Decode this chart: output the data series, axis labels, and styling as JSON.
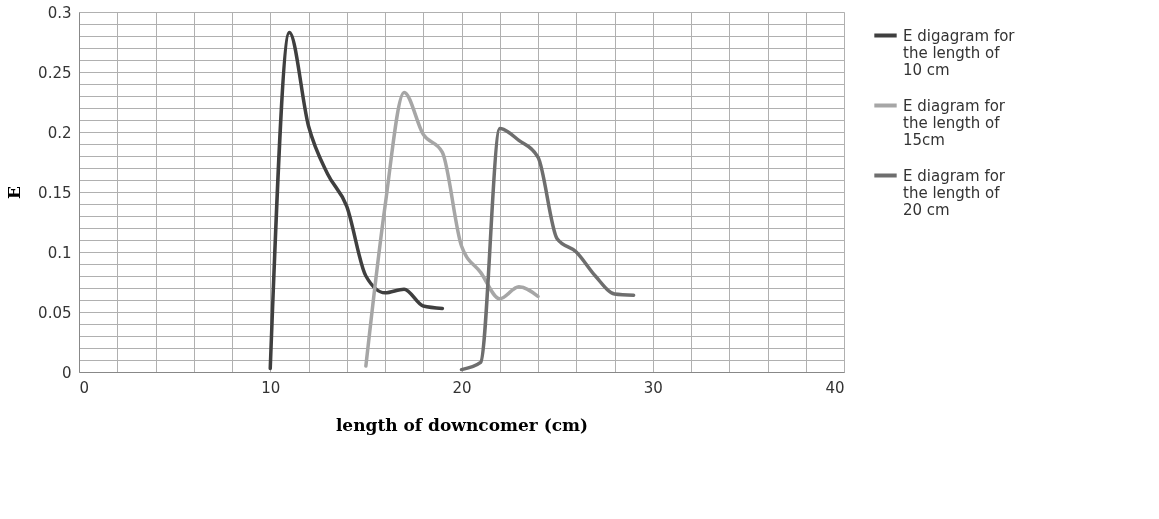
{
  "chart_data": {
    "type": "line",
    "xlabel": "length of downcomer (cm)",
    "ylabel": "E",
    "series": [
      {
        "name": "E digagram for the length of 10 cm",
        "color": "#3f3f3f",
        "x": [
          10,
          11,
          12,
          13,
          14,
          15,
          16,
          17,
          18,
          19
        ],
        "values": [
          0.003,
          0.283,
          0.205,
          0.165,
          0.138,
          0.08,
          0.066,
          0.069,
          0.055,
          0.053
        ]
      },
      {
        "name": "E diagram for the length of 15cm",
        "color": "#a6a6a6",
        "x": [
          15,
          16,
          17,
          18,
          19,
          20,
          21,
          22,
          23,
          24
        ],
        "values": [
          0.005,
          0.138,
          0.233,
          0.198,
          0.183,
          0.105,
          0.083,
          0.061,
          0.071,
          0.063
        ]
      },
      {
        "name": "E diagram for the length of 20 cm",
        "color": "#6e6e6e",
        "x": [
          20,
          21,
          22,
          23,
          24,
          25,
          26,
          27,
          28,
          29
        ],
        "values": [
          0.002,
          0.008,
          0.203,
          0.193,
          0.179,
          0.111,
          0.1,
          0.08,
          0.065,
          0.064
        ]
      }
    ],
    "xlim": [
      0,
      40
    ],
    "xticks": [
      0,
      {
        "value": 2,
        "label": null
      },
      {
        "value": 4,
        "label": null
      },
      {
        "value": 6,
        "label": null
      },
      {
        "value": 8,
        "label": null
      },
      10,
      {
        "value": 12,
        "label": null
      },
      {
        "value": 14,
        "label": null
      },
      {
        "value": 16,
        "label": null
      },
      {
        "value": 18,
        "label": null
      },
      20,
      {
        "value": 22,
        "label": null
      },
      {
        "value": 24,
        "label": null
      },
      {
        "value": 26,
        "label": null
      },
      {
        "value": 28,
        "label": null
      },
      30,
      {
        "value": 32,
        "label": null
      },
      {
        "value": 34,
        "label": null
      },
      {
        "value": 36,
        "label": null
      },
      {
        "value": 38,
        "label": null
      },
      40
    ],
    "ylim": [
      0,
      0.3
    ],
    "yticks": [
      0,
      {
        "value": 0.01,
        "label": null
      },
      {
        "value": 0.02,
        "label": null
      },
      {
        "value": 0.03,
        "label": null
      },
      {
        "value": 0.04,
        "label": null
      },
      0.05,
      {
        "value": 0.06,
        "label": null
      },
      {
        "value": 0.07,
        "label": null
      },
      {
        "value": 0.08,
        "label": null
      },
      {
        "value": 0.09,
        "label": null
      },
      0.1,
      {
        "value": 0.11,
        "label": null
      },
      {
        "value": 0.12,
        "label": null
      },
      {
        "value": 0.13,
        "label": null
      },
      {
        "value": 0.14,
        "label": null
      },
      0.15,
      {
        "value": 0.16,
        "label": null
      },
      {
        "value": 0.17,
        "label": null
      },
      {
        "value": 0.18,
        "label": null
      },
      {
        "value": 0.19,
        "label": null
      },
      0.2,
      {
        "value": 0.21,
        "label": null
      },
      {
        "value": 0.22,
        "label": null
      },
      {
        "value": 0.23,
        "label": null
      },
      {
        "value": 0.24,
        "label": null
      },
      0.25,
      {
        "value": 0.26,
        "label": null
      },
      {
        "value": 0.27,
        "label": null
      },
      {
        "value": 0.28,
        "label": null
      },
      {
        "value": 0.29,
        "label": null
      },
      0.3
    ],
    "grid": true,
    "legend": "right",
    "marker": "none",
    "line_style": "solid"
  }
}
